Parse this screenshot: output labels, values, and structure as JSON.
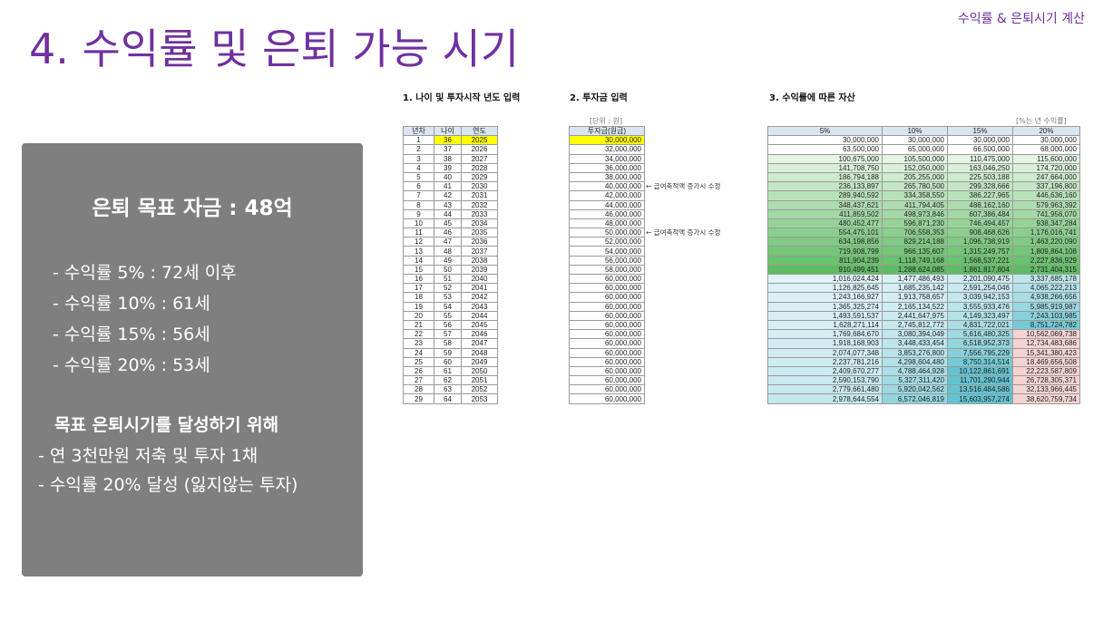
{
  "header": {
    "title": "4. 수익률 및 은퇴 가능 시기",
    "corner_label": "수익률 & 은퇴시기 계산"
  },
  "panel": {
    "goal": "은퇴 목표 자금 : 48억",
    "rates": [
      "- 수익률    5% : 72세 이후",
      "- 수익률 10% : 61세",
      "- 수익률 15% : 56세",
      "- 수익률 20% : 53세"
    ],
    "subhead": "목표 은퇴시기를 달성하기 위해",
    "actions": [
      "- 연 3천만원 저축 및 투자 1채",
      "- 수익률 20% 달성 (잃지않는 투자)"
    ]
  },
  "sections": {
    "s1": "1. 나이 및 투자시작 년도 입력",
    "s2": "2. 투자금 입력",
    "s3": "3. 수익률에 따른 자산",
    "unit_left": "[단위 : 원]",
    "unit_right": "[%는 년 수익률]"
  },
  "table1": {
    "headers": [
      "년차",
      "나이",
      "연도"
    ],
    "rows": [
      [
        "1",
        "36",
        "2025"
      ],
      [
        "2",
        "37",
        "2026"
      ],
      [
        "3",
        "38",
        "2027"
      ],
      [
        "4",
        "39",
        "2028"
      ],
      [
        "5",
        "40",
        "2029"
      ],
      [
        "6",
        "41",
        "2030"
      ],
      [
        "7",
        "42",
        "2031"
      ],
      [
        "8",
        "43",
        "2032"
      ],
      [
        "9",
        "44",
        "2033"
      ],
      [
        "10",
        "45",
        "2034"
      ],
      [
        "11",
        "46",
        "2035"
      ],
      [
        "12",
        "47",
        "2036"
      ],
      [
        "13",
        "48",
        "2037"
      ],
      [
        "14",
        "49",
        "2038"
      ],
      [
        "15",
        "50",
        "2039"
      ],
      [
        "16",
        "51",
        "2040"
      ],
      [
        "17",
        "52",
        "2041"
      ],
      [
        "18",
        "53",
        "2042"
      ],
      [
        "19",
        "54",
        "2043"
      ],
      [
        "20",
        "55",
        "2044"
      ],
      [
        "21",
        "56",
        "2045"
      ],
      [
        "22",
        "57",
        "2046"
      ],
      [
        "23",
        "58",
        "2047"
      ],
      [
        "24",
        "59",
        "2048"
      ],
      [
        "25",
        "60",
        "2049"
      ],
      [
        "26",
        "61",
        "2050"
      ],
      [
        "27",
        "62",
        "2051"
      ],
      [
        "28",
        "63",
        "2052"
      ],
      [
        "29",
        "64",
        "2053"
      ]
    ]
  },
  "table2": {
    "header": "투자금(원금)",
    "values": [
      "30,000,000",
      "32,000,000",
      "34,000,000",
      "36,000,000",
      "38,000,000",
      "40,000,000",
      "42,000,000",
      "44,000,000",
      "46,000,000",
      "48,000,000",
      "50,000,000",
      "52,000,000",
      "54,000,000",
      "56,000,000",
      "58,000,000",
      "60,000,000",
      "60,000,000",
      "60,000,000",
      "60,000,000",
      "60,000,000",
      "60,000,000",
      "60,000,000",
      "60,000,000",
      "60,000,000",
      "60,000,000",
      "60,000,000",
      "60,000,000",
      "60,000,000",
      "60,000,000"
    ],
    "notes": [
      {
        "row": 6,
        "text": "← 급여축적액 증가시 수정"
      },
      {
        "row": 11,
        "text": "← 급여축적액 증가시 수정"
      }
    ]
  },
  "table3": {
    "headers": [
      "5%",
      "10%",
      "15%",
      "20%"
    ],
    "rows": [
      [
        "30,000,000",
        "30,000,000",
        "30,000,000",
        "30,000,000"
      ],
      [
        "63,500,000",
        "65,000,000",
        "66,500,000",
        "68,000,000"
      ],
      [
        "100,675,000",
        "105,500,000",
        "110,475,000",
        "115,600,000"
      ],
      [
        "141,708,750",
        "152,050,000",
        "163,046,250",
        "174,720,000"
      ],
      [
        "186,794,188",
        "205,255,000",
        "225,503,188",
        "247,664,000"
      ],
      [
        "236,133,897",
        "265,780,500",
        "299,328,666",
        "337,196,800"
      ],
      [
        "289,940,592",
        "334,358,550",
        "386,227,965",
        "446,636,160"
      ],
      [
        "348,437,621",
        "411,794,405",
        "488,162,160",
        "579,963,392"
      ],
      [
        "411,859,502",
        "498,973,846",
        "607,386,484",
        "741,956,070"
      ],
      [
        "480,452,477",
        "596,871,230",
        "746,494,457",
        "938,347,284"
      ],
      [
        "554,475,101",
        "706,558,353",
        "908,468,626",
        "1,176,016,741"
      ],
      [
        "634,198,856",
        "829,214,188",
        "1,096,738,919",
        "1,463,220,090"
      ],
      [
        "719,908,799",
        "966,135,607",
        "1,315,249,757",
        "1,809,864,108"
      ],
      [
        "811,904,239",
        "1,118,749,168",
        "1,568,537,221",
        "2,227,836,929"
      ],
      [
        "910,499,451",
        "1,288,624,085",
        "1,861,817,804",
        "2,731,404,315"
      ],
      [
        "1,016,024,424",
        "1,477,486,493",
        "2,201,090,475",
        "3,337,685,178"
      ],
      [
        "1,126,825,645",
        "1,685,235,142",
        "2,591,254,046",
        "4,065,222,213"
      ],
      [
        "1,243,166,927",
        "1,913,758,657",
        "3,039,942,153",
        "4,938,266,656"
      ],
      [
        "1,365,325,274",
        "2,165,134,522",
        "3,555,933,476",
        "5,985,919,987"
      ],
      [
        "1,493,591,537",
        "2,441,647,975",
        "4,149,323,497",
        "7,243,103,985"
      ],
      [
        "1,628,271,114",
        "2,745,812,772",
        "4,831,722,021",
        "8,751,724,782"
      ],
      [
        "1,769,684,670",
        "3,080,394,049",
        "5,616,480,325",
        "10,562,069,738"
      ],
      [
        "1,918,168,903",
        "3,448,433,454",
        "6,518,952,373",
        "12,734,483,686"
      ],
      [
        "2,074,077,348",
        "3,853,276,800",
        "7,556,795,229",
        "15,341,380,423"
      ],
      [
        "2,237,781,216",
        "4,298,604,480",
        "8,750,314,514",
        "18,469,656,508"
      ],
      [
        "2,409,670,277",
        "4,788,464,928",
        "10,122,861,691",
        "22,223,587,809"
      ],
      [
        "2,590,153,790",
        "5,327,311,420",
        "11,701,290,944",
        "26,728,305,371"
      ],
      [
        "2,779,661,480",
        "5,920,042,562",
        "13,516,484,586",
        "32,133,966,445"
      ],
      [
        "2,978,644,554",
        "6,572,046,819",
        "15,603,957,274",
        "38,620,759,734"
      ]
    ]
  },
  "colors": {
    "title": "#7030a0",
    "panel_bg": "#7f7f7f",
    "header_bg": "#dbe5f1",
    "input_highlight": "#ffff00",
    "green_light": "#e5f4e5",
    "green_dark": "#5ebd62",
    "teal_light": "#dff2f7",
    "teal_dark": "#63c3d0",
    "red_light": "#f6d3d3"
  }
}
